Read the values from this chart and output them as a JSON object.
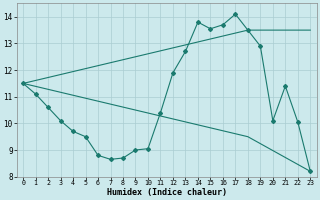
{
  "xlabel": "Humidex (Indice chaleur)",
  "bg_color": "#cce9ec",
  "grid_color": "#aacdd2",
  "line_color": "#1a7a6e",
  "xlim": [
    -0.5,
    23.5
  ],
  "ylim": [
    8,
    14.5
  ],
  "xticks": [
    0,
    1,
    2,
    3,
    4,
    5,
    6,
    7,
    8,
    9,
    10,
    11,
    12,
    13,
    14,
    15,
    16,
    17,
    18,
    19,
    20,
    21,
    22,
    23
  ],
  "yticks": [
    8,
    9,
    10,
    11,
    12,
    13,
    14
  ],
  "line1_x": [
    0,
    1,
    2,
    3,
    4,
    5,
    6,
    7,
    8,
    9,
    10,
    11,
    12,
    13,
    14,
    15,
    16,
    17,
    18,
    19,
    20,
    21,
    22,
    23
  ],
  "line1_y": [
    11.5,
    11.1,
    10.6,
    10.1,
    9.7,
    9.5,
    8.8,
    8.65,
    8.7,
    9.0,
    9.05,
    10.4,
    11.9,
    12.7,
    13.8,
    13.55,
    13.7,
    14.1,
    13.5,
    12.9,
    10.1,
    11.4,
    10.05,
    8.2
  ],
  "line2_x": [
    0,
    18,
    23
  ],
  "line2_y": [
    11.5,
    13.5,
    13.5
  ],
  "line3_x": [
    0,
    18,
    23
  ],
  "line3_y": [
    11.5,
    9.5,
    8.2
  ]
}
